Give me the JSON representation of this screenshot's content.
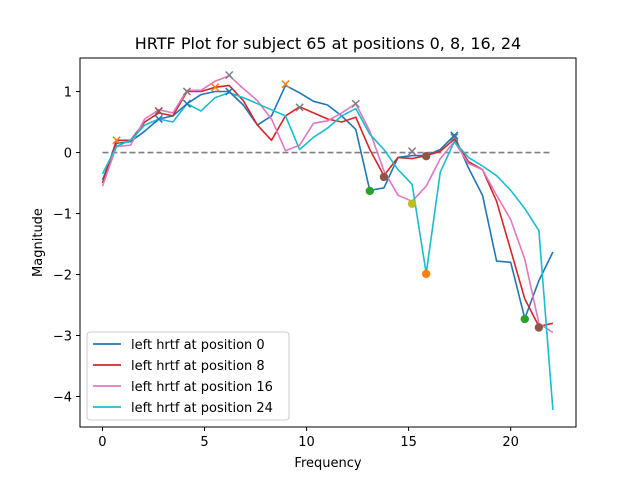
{
  "chart_data": {
    "type": "line",
    "title": "HRTF Plot for subject 65 at positions 0, 8, 16, 24",
    "xlabel": "Frequency",
    "ylabel": "Magnitude",
    "xlim": [
      -1.1,
      23.2
    ],
    "ylim": [
      -4.5,
      1.55
    ],
    "xticks": [
      0,
      5,
      10,
      15,
      20
    ],
    "yticks": [
      1,
      0,
      -1,
      -2,
      -3,
      -4
    ],
    "ytick_labels": [
      "1",
      "0",
      "−1",
      "−2",
      "−3",
      "−4"
    ],
    "legend_position": "lower left",
    "reference_line": {
      "y": 0,
      "x_range": [
        0,
        22
      ],
      "style": "dashed",
      "color": "#808080"
    },
    "series": [
      {
        "name": "left hrtf at position 0",
        "color": "#1f77b4",
        "x": [
          0,
          0.69,
          1.38,
          2.07,
          2.76,
          3.45,
          4.14,
          4.83,
          5.52,
          6.21,
          6.9,
          7.59,
          8.28,
          8.97,
          9.66,
          10.34,
          11.03,
          11.72,
          12.41,
          13.1,
          13.79,
          14.48,
          15.17,
          15.86,
          16.55,
          17.24,
          17.93,
          18.62,
          19.31,
          20.0,
          20.69,
          21.38,
          22.07
        ],
        "y": [
          -0.45,
          0.15,
          0.18,
          0.35,
          0.55,
          0.6,
          0.8,
          0.95,
          1.0,
          1.0,
          0.78,
          0.45,
          0.6,
          1.1,
          0.98,
          0.84,
          0.78,
          0.6,
          0.38,
          -0.62,
          -0.58,
          -0.08,
          -0.05,
          -0.05,
          0.05,
          0.28,
          -0.25,
          -0.7,
          -1.78,
          -1.8,
          -2.72,
          -2.1,
          -1.63
        ]
      },
      {
        "name": "left hrtf at position 8",
        "color": "#d62728",
        "x": [
          0,
          0.69,
          1.38,
          2.07,
          2.76,
          3.45,
          4.14,
          4.83,
          5.52,
          6.21,
          6.9,
          7.59,
          8.28,
          8.97,
          9.66,
          10.34,
          11.03,
          11.72,
          12.41,
          13.1,
          13.79,
          14.48,
          15.17,
          15.86,
          16.55,
          17.24,
          17.93,
          18.62,
          19.31,
          20.0,
          20.69,
          21.38,
          22.07
        ],
        "y": [
          -0.5,
          0.2,
          0.2,
          0.5,
          0.65,
          0.6,
          1.0,
          1.0,
          1.07,
          1.1,
          0.85,
          0.45,
          0.2,
          0.6,
          0.75,
          0.65,
          0.55,
          0.5,
          0.58,
          0.05,
          -0.38,
          -0.08,
          -0.1,
          -0.05,
          0.02,
          0.22,
          -0.15,
          -0.28,
          -0.8,
          -1.6,
          -2.4,
          -2.85,
          -2.8
        ]
      },
      {
        "name": "left hrtf at position 16",
        "color": "#e377c2",
        "x": [
          0,
          0.69,
          1.38,
          2.07,
          2.76,
          3.45,
          4.14,
          4.83,
          5.52,
          6.21,
          6.9,
          7.59,
          8.28,
          8.97,
          9.66,
          10.34,
          11.03,
          11.72,
          12.41,
          13.1,
          13.79,
          14.48,
          15.17,
          15.86,
          16.55,
          17.24,
          17.93,
          18.62,
          19.31,
          20.0,
          20.69,
          21.38,
          22.07
        ],
        "y": [
          -0.55,
          0.1,
          0.12,
          0.55,
          0.7,
          0.65,
          1.02,
          1.02,
          1.17,
          1.26,
          1.05,
          0.85,
          0.55,
          0.03,
          0.12,
          0.48,
          0.52,
          0.65,
          0.8,
          0.35,
          -0.3,
          -0.7,
          -0.8,
          -0.55,
          -0.1,
          0.18,
          -0.18,
          -0.28,
          -0.7,
          -1.1,
          -1.75,
          -2.8,
          -2.95
        ]
      },
      {
        "name": "left hrtf at position 24",
        "color": "#17becf",
        "x": [
          0,
          0.69,
          1.38,
          2.07,
          2.76,
          3.45,
          4.14,
          4.83,
          5.52,
          6.21,
          6.9,
          7.59,
          8.28,
          8.97,
          9.66,
          10.34,
          11.03,
          11.72,
          12.41,
          13.1,
          13.79,
          14.48,
          15.17,
          15.86,
          16.55,
          17.24,
          17.93,
          18.62,
          19.31,
          20.0,
          20.69,
          21.38,
          22.07
        ],
        "y": [
          -0.35,
          0.1,
          0.2,
          0.45,
          0.55,
          0.5,
          0.8,
          0.68,
          0.9,
          0.98,
          0.9,
          0.8,
          0.7,
          0.6,
          0.05,
          0.25,
          0.4,
          0.6,
          0.72,
          0.3,
          0.05,
          -0.28,
          -0.52,
          -1.98,
          -0.32,
          0.18,
          -0.08,
          -0.22,
          -0.38,
          -0.62,
          -0.92,
          -1.28,
          -4.22
        ]
      }
    ],
    "markers": [
      {
        "shape": "x",
        "color": "#ff7f0e",
        "points": [
          [
            0.69,
            0.2
          ],
          [
            5.52,
            1.07
          ],
          [
            8.97,
            1.12
          ]
        ]
      },
      {
        "shape": "x",
        "color": "#8c564b",
        "points": [
          [
            2.76,
            0.68
          ]
        ]
      },
      {
        "shape": "x",
        "color": "#7f7f7f",
        "points": [
          [
            4.14,
            1.0
          ],
          [
            6.21,
            1.27
          ],
          [
            9.66,
            0.74
          ],
          [
            12.41,
            0.8
          ],
          [
            15.17,
            0.02
          ],
          [
            17.24,
            0.25
          ]
        ]
      },
      {
        "shape": "x",
        "color": "#1f77b4",
        "points": [
          [
            2.76,
            0.55
          ],
          [
            4.14,
            0.8
          ],
          [
            6.21,
            1.0
          ],
          [
            17.24,
            0.28
          ]
        ]
      },
      {
        "shape": "dot",
        "color": "#2ca02c",
        "points": [
          [
            13.1,
            -0.63
          ],
          [
            20.69,
            -2.73
          ]
        ]
      },
      {
        "shape": "dot",
        "color": "#8c564b",
        "points": [
          [
            13.79,
            -0.4
          ],
          [
            15.86,
            -0.06
          ],
          [
            21.38,
            -2.87
          ]
        ]
      },
      {
        "shape": "dot",
        "color": "#bcbd22",
        "points": [
          [
            15.17,
            -0.84
          ]
        ]
      },
      {
        "shape": "dot",
        "color": "#ff7f0e",
        "points": [
          [
            15.86,
            -1.99
          ]
        ]
      }
    ]
  }
}
